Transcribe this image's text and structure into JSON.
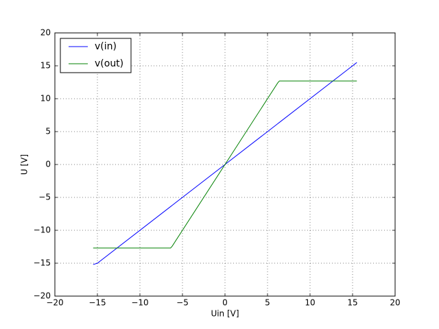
{
  "chart_data": {
    "type": "line",
    "xlabel": "Uin [V]",
    "ylabel": "U [V]",
    "x": [
      -15.5,
      -15,
      -6.4,
      -6.2,
      0,
      6.2,
      6.4,
      15.5
    ],
    "series": [
      {
        "name": "v(in)",
        "color": "#0000ff",
        "values": [
          -15.2,
          -15,
          -6.4,
          -6.2,
          0,
          6.2,
          6.4,
          15.5
        ]
      },
      {
        "name": "v(out)",
        "color": "#008000",
        "values": [
          -12.7,
          -12.7,
          -12.7,
          -12.4,
          0,
          12.4,
          12.7,
          12.7
        ]
      }
    ],
    "xlim": [
      -20,
      20
    ],
    "xticks": [
      {
        "value": -20,
        "label": "−20"
      },
      {
        "value": -15,
        "label": "−15"
      },
      {
        "value": -10,
        "label": "−10"
      },
      {
        "value": -5,
        "label": "−5"
      },
      0,
      5,
      10,
      15,
      20
    ],
    "ylim": [
      -20,
      20
    ],
    "yticks": [
      {
        "value": -20,
        "label": "−20"
      },
      {
        "value": -15,
        "label": "−15"
      },
      {
        "value": -10,
        "label": "−10"
      },
      {
        "value": -5,
        "label": "−5"
      },
      0,
      5,
      10,
      15,
      20
    ],
    "grid": true,
    "legend": "upper-left"
  }
}
